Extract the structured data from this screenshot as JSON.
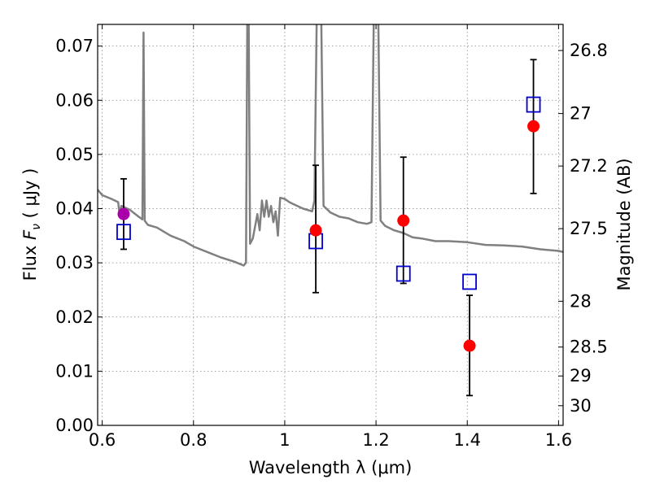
{
  "chart_data": {
    "type": "scatter",
    "xlabel": "Wavelength  λ (μm)",
    "ylabel_prefix": "Flux  ",
    "ylabel_var": "F",
    "ylabel_sub": "ν",
    "ylabel_unit": "  ( μJy )",
    "ylabel_right": "Magnitude (AB)",
    "xlim": [
      0.59,
      1.61
    ],
    "ylim": [
      0,
      0.074
    ],
    "x_ticks": [
      0.6,
      0.8,
      1.0,
      1.2,
      1.4,
      1.6
    ],
    "x_tick_labels": [
      "0.6",
      "0.8",
      "1",
      "1.2",
      "1.4",
      "1.6"
    ],
    "y_ticks": [
      0,
      0.01,
      0.02,
      0.03,
      0.04,
      0.05,
      0.06,
      0.07
    ],
    "y_tick_labels": [
      "0.00",
      "0.01",
      "0.02",
      "0.03",
      "0.04",
      "0.05",
      "0.06",
      "0.07"
    ],
    "right_ticks": [
      {
        "label": "26.8",
        "mag": 26.8
      },
      {
        "label": "27",
        "mag": 27.0
      },
      {
        "label": "27.2",
        "mag": 27.2
      },
      {
        "label": "27.5",
        "mag": 27.5
      },
      {
        "label": "28",
        "mag": 28.0
      },
      {
        "label": "28.5",
        "mag": 28.5
      },
      {
        "label": "29",
        "mag": 29.0
      },
      {
        "label": "30",
        "mag": 30.0
      }
    ],
    "grid": true,
    "colors": {
      "model": "#808080",
      "observed": "#ff0000",
      "observed_upper": "#aa00aa",
      "model_photometry": "#0000cc",
      "errorbar": "#000000"
    },
    "series": [
      {
        "kind": "line",
        "points": [
          [
            0.59,
            0.0435
          ],
          [
            0.6,
            0.0425
          ],
          [
            0.62,
            0.0418
          ],
          [
            0.635,
            0.0412
          ],
          [
            0.638,
            0.039
          ],
          [
            0.642,
            0.0405
          ],
          [
            0.66,
            0.0398
          ],
          [
            0.68,
            0.0385
          ],
          [
            0.688,
            0.038
          ],
          [
            0.6905,
            0.0725
          ],
          [
            0.693,
            0.0378
          ],
          [
            0.7,
            0.037
          ],
          [
            0.72,
            0.0365
          ],
          [
            0.75,
            0.035
          ],
          [
            0.78,
            0.034
          ],
          [
            0.8,
            0.033
          ],
          [
            0.83,
            0.032
          ],
          [
            0.86,
            0.031
          ],
          [
            0.89,
            0.0302
          ],
          [
            0.91,
            0.0295
          ],
          [
            0.915,
            0.03
          ],
          [
            0.918,
            0.075
          ],
          [
            0.921,
            0.075
          ],
          [
            0.924,
            0.0335
          ],
          [
            0.93,
            0.0345
          ],
          [
            0.94,
            0.039
          ],
          [
            0.945,
            0.036
          ],
          [
            0.95,
            0.0415
          ],
          [
            0.955,
            0.0385
          ],
          [
            0.96,
            0.0415
          ],
          [
            0.965,
            0.0385
          ],
          [
            0.97,
            0.0405
          ],
          [
            0.975,
            0.0375
          ],
          [
            0.98,
            0.0395
          ],
          [
            0.985,
            0.035
          ],
          [
            0.99,
            0.042
          ],
          [
            1.0,
            0.0418
          ],
          [
            1.01,
            0.0412
          ],
          [
            1.02,
            0.0408
          ],
          [
            1.04,
            0.04
          ],
          [
            1.06,
            0.0395
          ],
          [
            1.065,
            0.0415
          ],
          [
            1.07,
            0.075
          ],
          [
            1.08,
            0.075
          ],
          [
            1.085,
            0.0405
          ],
          [
            1.1,
            0.0393
          ],
          [
            1.12,
            0.0385
          ],
          [
            1.14,
            0.0382
          ],
          [
            1.16,
            0.0375
          ],
          [
            1.18,
            0.0372
          ],
          [
            1.19,
            0.0375
          ],
          [
            1.195,
            0.075
          ],
          [
            1.205,
            0.075
          ],
          [
            1.21,
            0.0378
          ],
          [
            1.22,
            0.0368
          ],
          [
            1.24,
            0.036
          ],
          [
            1.26,
            0.0355
          ],
          [
            1.28,
            0.0347
          ],
          [
            1.3,
            0.0345
          ],
          [
            1.33,
            0.034
          ],
          [
            1.36,
            0.034
          ],
          [
            1.4,
            0.0338
          ],
          [
            1.44,
            0.0333
          ],
          [
            1.48,
            0.0332
          ],
          [
            1.52,
            0.033
          ],
          [
            1.56,
            0.0325
          ],
          [
            1.6,
            0.0322
          ],
          [
            1.61,
            0.032
          ]
        ]
      },
      {
        "kind": "observed",
        "points": [
          {
            "x": 0.647,
            "y": 0.039,
            "yerr_low": 0.0325,
            "yerr_high": 0.0455,
            "upper": true
          },
          {
            "x": 1.068,
            "y": 0.036,
            "yerr_low": 0.0245,
            "yerr_high": 0.048,
            "upper": false
          },
          {
            "x": 1.26,
            "y": 0.0378,
            "yerr_low": 0.0262,
            "yerr_high": 0.0495,
            "upper": false
          },
          {
            "x": 1.405,
            "y": 0.0147,
            "yerr_low": 0.0055,
            "yerr_high": 0.024,
            "upper": false
          },
          {
            "x": 1.545,
            "y": 0.0552,
            "yerr_low": 0.0428,
            "yerr_high": 0.0675,
            "upper": false
          }
        ]
      },
      {
        "kind": "model_photometry",
        "points": [
          {
            "x": 0.647,
            "y": 0.0357
          },
          {
            "x": 1.068,
            "y": 0.034
          },
          {
            "x": 1.26,
            "y": 0.028
          },
          {
            "x": 1.405,
            "y": 0.0265
          },
          {
            "x": 1.545,
            "y": 0.0592
          }
        ]
      }
    ]
  }
}
